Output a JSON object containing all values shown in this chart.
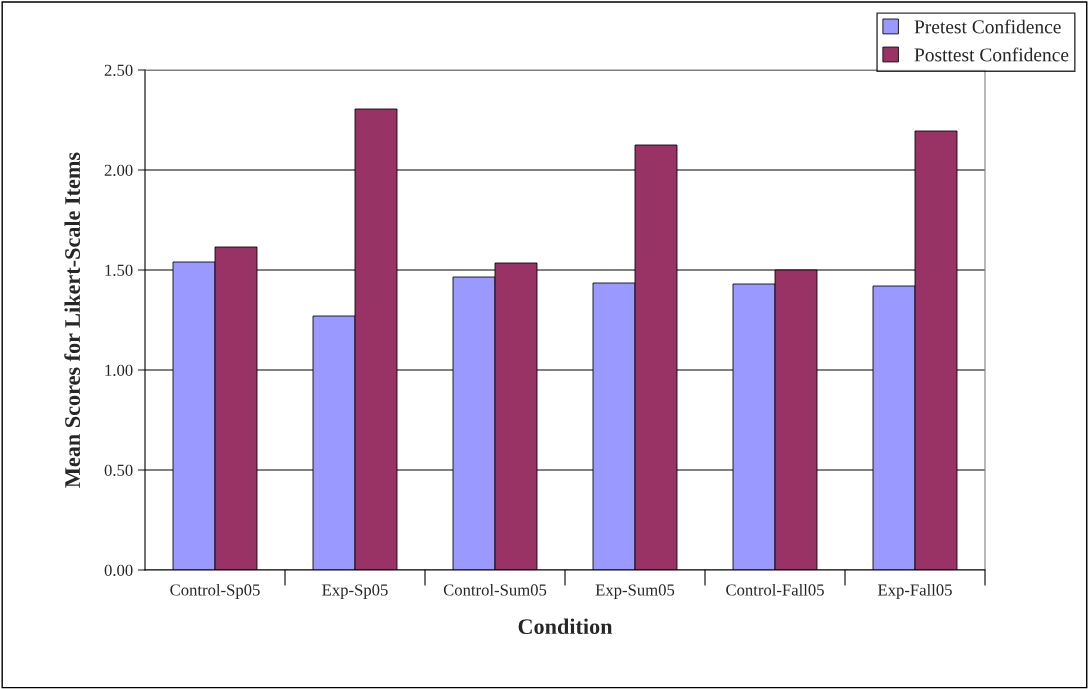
{
  "chart_data": {
    "type": "bar",
    "xlabel": "Condition",
    "ylabel": "Mean Scores for Likert-Scale Items",
    "categories": [
      "Control-Sp05",
      "Exp-Sp05",
      "Control-Sum05",
      "Exp-Sum05",
      "Control-Fall05",
      "Exp-Fall05"
    ],
    "series": [
      {
        "name": "Pretest Confidence",
        "color": "#9999ff",
        "values": [
          1.54,
          1.27,
          1.465,
          1.435,
          1.43,
          1.42
        ]
      },
      {
        "name": "Posttest Confidence",
        "color": "#993366",
        "values": [
          1.615,
          2.305,
          1.535,
          2.125,
          1.5,
          2.195
        ]
      }
    ],
    "ylim": [
      0,
      2.5
    ],
    "yticks": [
      {
        "value": 0,
        "label": "0.00"
      },
      {
        "value": 0.5,
        "label": "0.50"
      },
      {
        "value": 1,
        "label": "1.00"
      },
      {
        "value": 1.5,
        "label": "1.50"
      },
      {
        "value": 2,
        "label": "2.00"
      },
      {
        "value": 2.5,
        "label": "2.50"
      }
    ],
    "grid": "y",
    "legend": "top right"
  }
}
